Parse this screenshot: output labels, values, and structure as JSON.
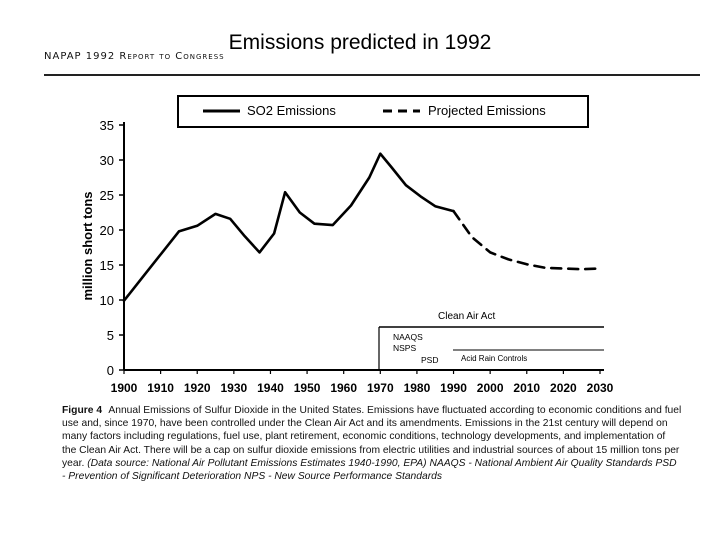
{
  "slide": {
    "title": "Emissions predicted in 1992",
    "report_header": "NAPAP 1992 Report to Congress"
  },
  "chart_data": {
    "type": "line",
    "ylabel": "million short tons",
    "xlim": [
      1900,
      2030
    ],
    "ylim": [
      0,
      35
    ],
    "x_ticks": [
      1900,
      1910,
      1920,
      1930,
      1940,
      1950,
      1960,
      1970,
      1980,
      1990,
      2000,
      2010,
      2020,
      2030
    ],
    "y_ticks": [
      0,
      5,
      10,
      15,
      20,
      25,
      30,
      35
    ],
    "legend": [
      "SO2 Emissions",
      "Projected Emissions"
    ],
    "series": [
      {
        "name": "SO2 Emissions",
        "style": "solid",
        "x": [
          1900,
          1905,
          1910,
          1915,
          1920,
          1925,
          1929,
          1933,
          1937,
          1941,
          1944,
          1948,
          1952,
          1957,
          1962,
          1967,
          1970,
          1973,
          1977,
          1981,
          1985,
          1990
        ],
        "values": [
          9.9,
          13.2,
          16.5,
          19.8,
          20.6,
          22.3,
          21.6,
          19.1,
          16.8,
          19.5,
          25.4,
          22.5,
          20.9,
          20.7,
          23.5,
          27.5,
          30.9,
          29.0,
          26.4,
          24.8,
          23.4,
          22.7
        ]
      },
      {
        "name": "Projected Emissions",
        "style": "dashed",
        "x": [
          1990,
          1995,
          2000,
          2005,
          2010,
          2015,
          2020,
          2025,
          2030
        ],
        "values": [
          22.7,
          19.0,
          16.8,
          15.8,
          15.1,
          14.6,
          14.5,
          14.4,
          14.5
        ]
      }
    ],
    "annotations": [
      "Clean Air Act",
      "NAAQS",
      "NSPS",
      "PSD",
      "Acid Rain Controls"
    ]
  },
  "caption": {
    "figure_label": "Figure 4",
    "body": "Annual Emissions of Sulfur Dioxide in the United States. Emissions have fluctuated according to economic conditions and fuel use and, since 1970, have been controlled under the Clean Air Act and its amendments. Emissions in the 21st century will depend on many factors including regulations, fuel use, plant retirement, economic conditions, technology developments, and implementation of the Clean Air Act. There will be a cap on sulfur dioxide emissions from electric utilities and industrial sources of about 15 million tons per year.",
    "source": "(Data source: National Air Pollutant Emissions Estimates 1940-1990, EPA)",
    "def_naaqs": "NAAQS - National Ambient Air Quality Standards",
    "def_psd": "PSD - Prevention of Significant Deterioration",
    "def_nps": "NPS - New Source Performance Standards"
  }
}
